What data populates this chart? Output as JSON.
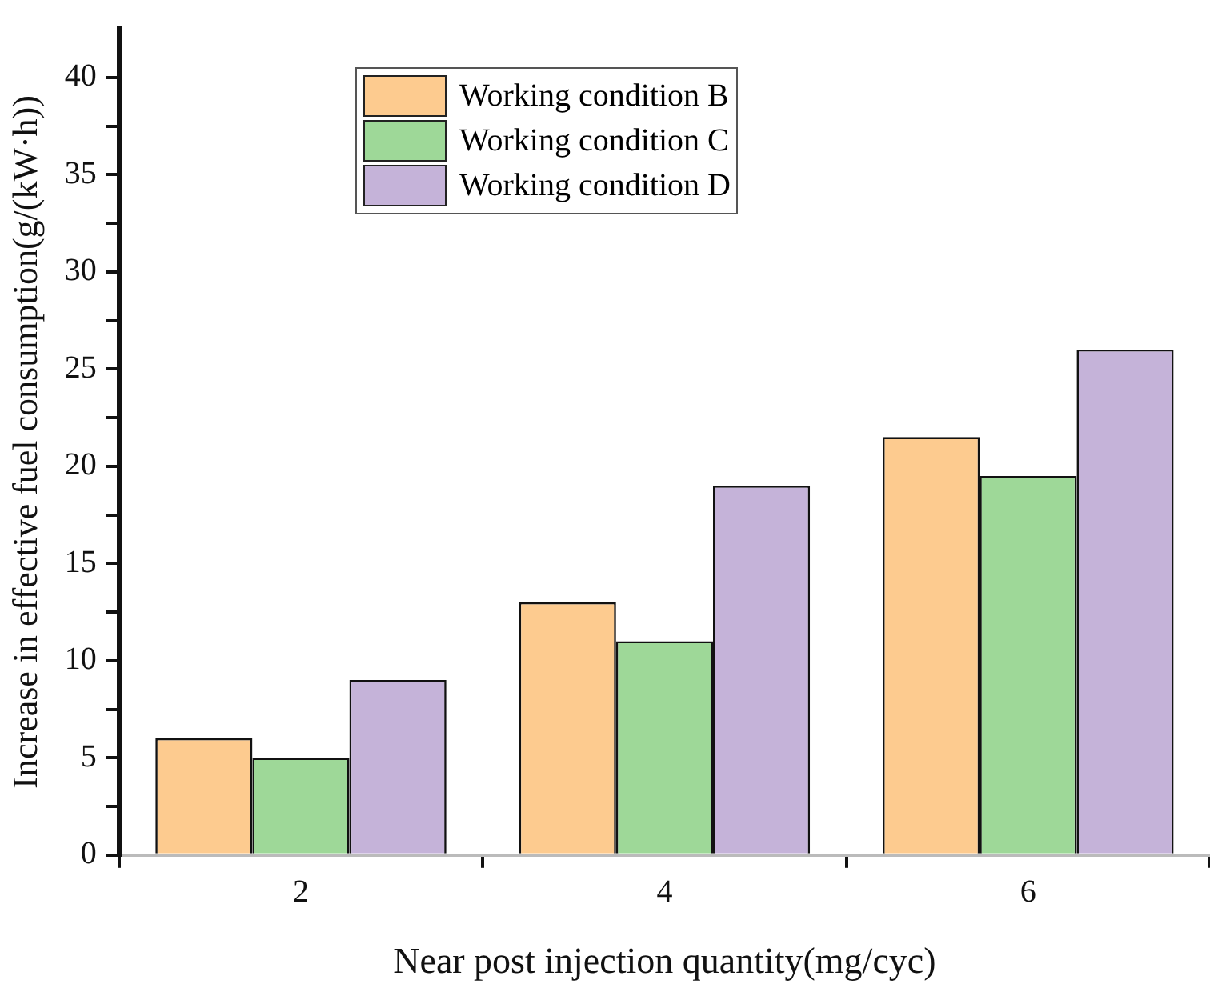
{
  "chart_data": {
    "type": "bar",
    "xlabel": "Near post injection quantity(mg/cyc)",
    "ylabel": "Increase in effective fuel consumption(g/(kW·h))",
    "categories": [
      "2",
      "4",
      "6"
    ],
    "series": [
      {
        "name": "Working condition B",
        "color": "#fdcb8f",
        "values": [
          6,
          13,
          21.5
        ]
      },
      {
        "name": "Working condition C",
        "color": "#9ed898",
        "values": [
          5,
          11,
          19.5
        ]
      },
      {
        "name": "Working condition D",
        "color": "#c5b3d9",
        "values": [
          9,
          19,
          26
        ]
      }
    ],
    "ylim": [
      0,
      42.5
    ],
    "yticks": [
      0,
      {
        "value": 2.5,
        "label": null
      },
      5,
      {
        "value": 7.5,
        "label": null
      },
      10,
      {
        "value": 12.5,
        "label": null
      },
      15,
      {
        "value": 17.5,
        "label": null
      },
      20,
      {
        "value": 22.5,
        "label": null
      },
      25,
      {
        "value": 27.5,
        "label": null
      },
      30,
      {
        "value": 32.5,
        "label": null
      },
      35,
      {
        "value": 37.5,
        "label": null
      },
      40
    ],
    "grid": false,
    "legend": "top left"
  }
}
